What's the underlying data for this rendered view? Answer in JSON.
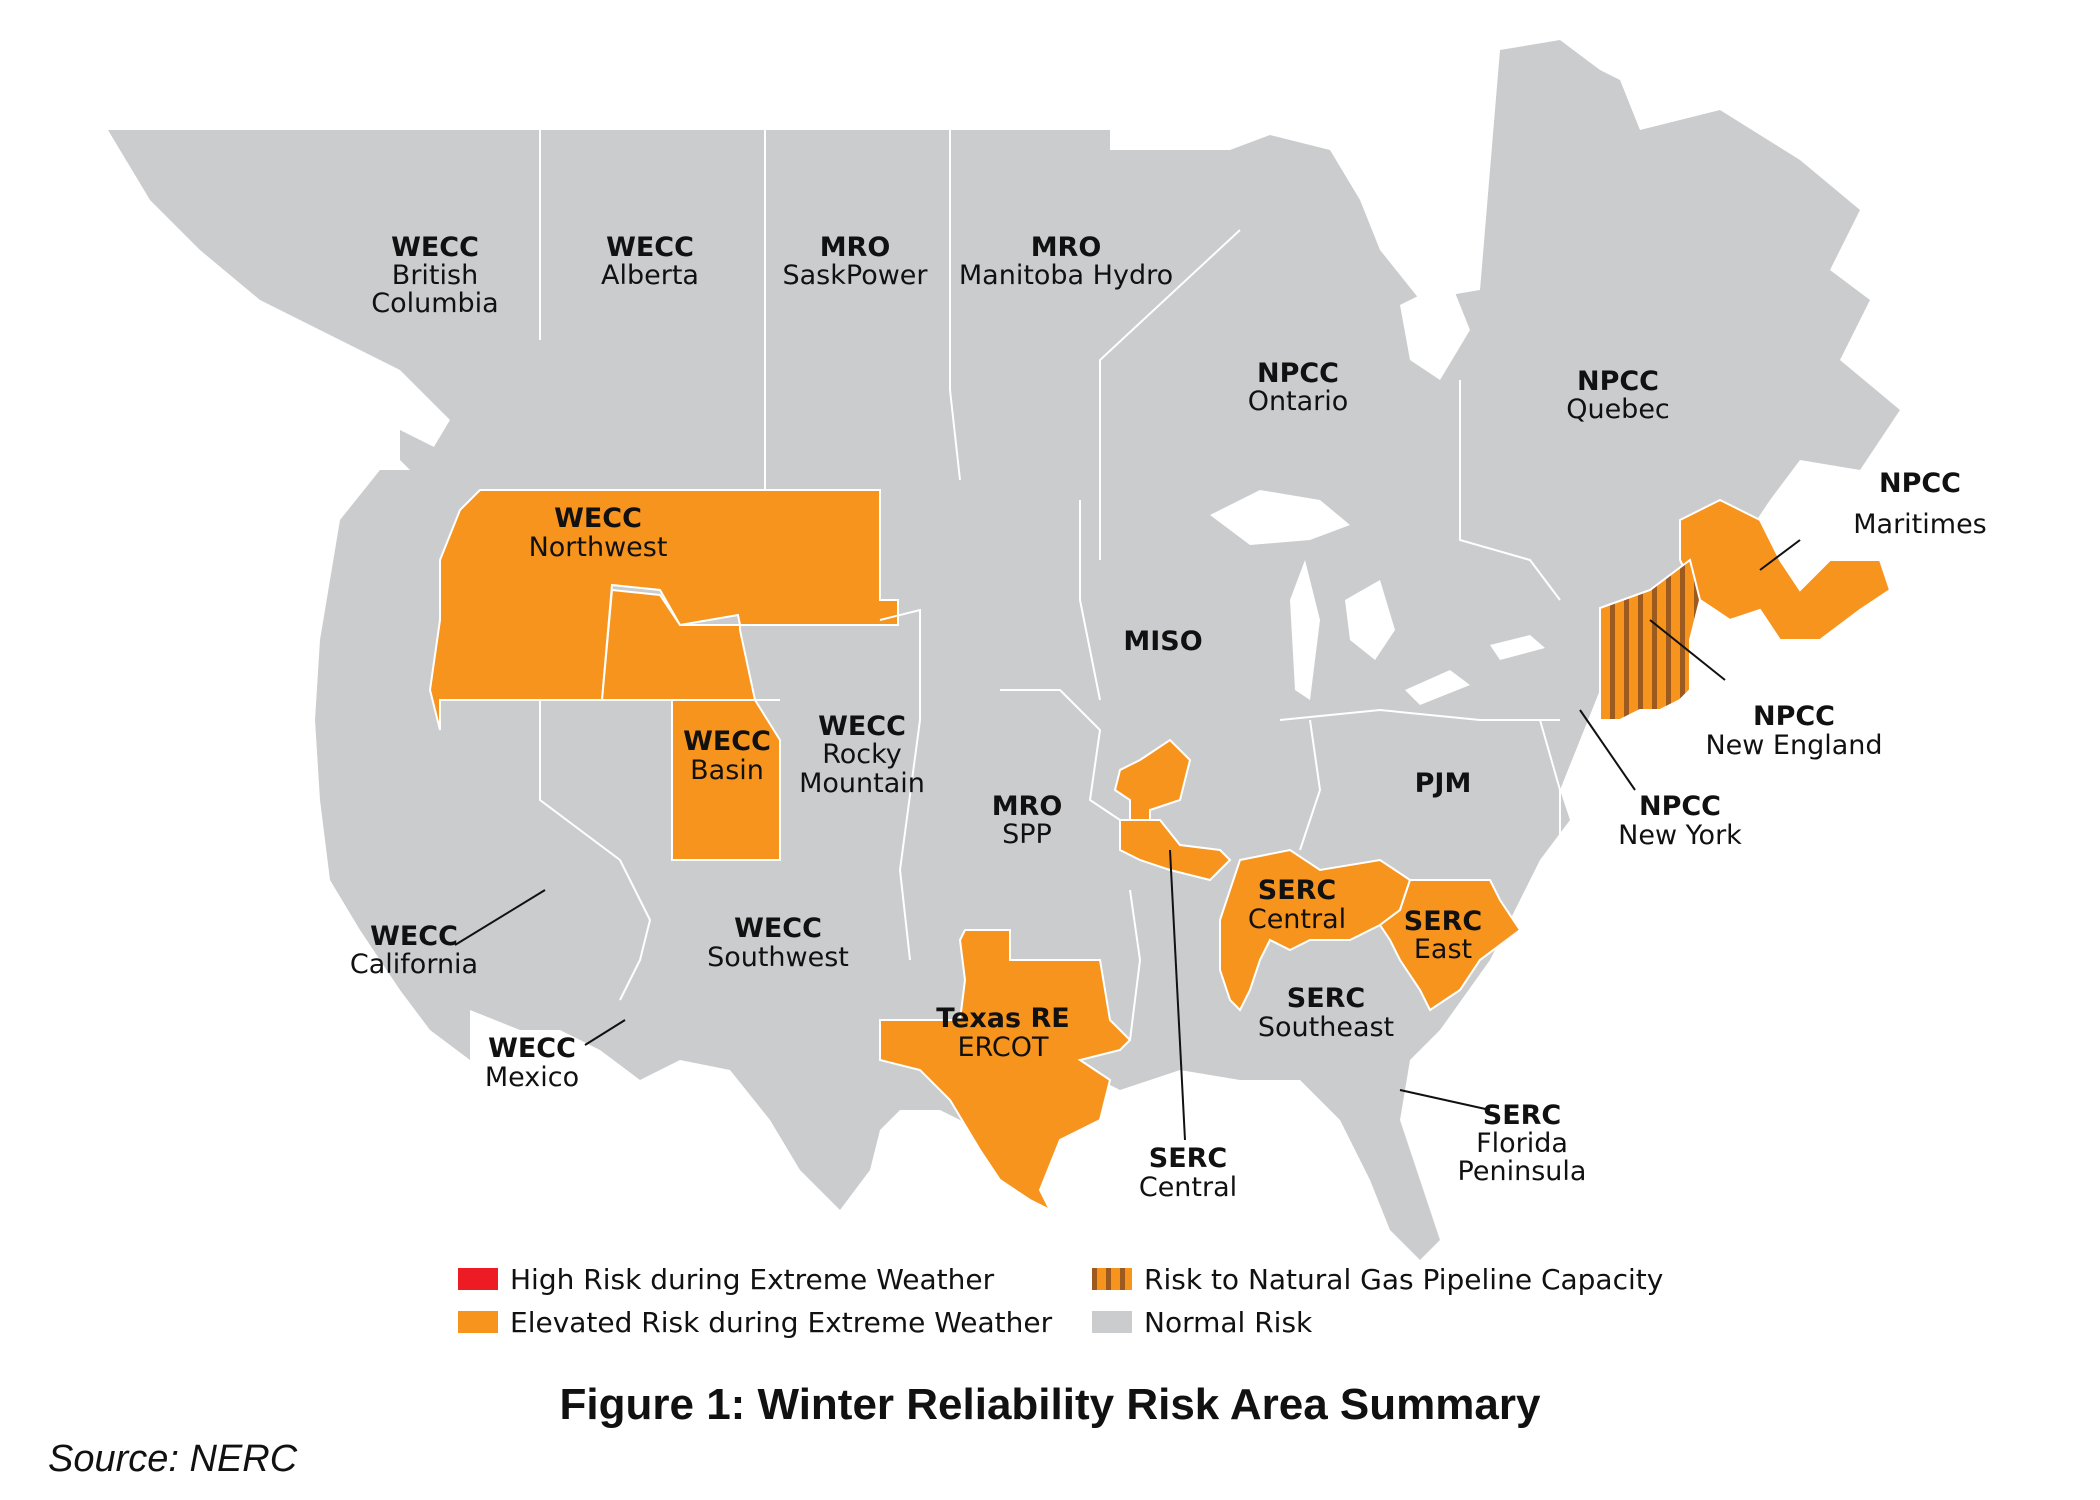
{
  "colors": {
    "normal": "#cbcccd",
    "elevated": "#f7941e",
    "high": "#ed1c24",
    "pipeline_stripe": "#9c5a1e",
    "border": "#ffffff"
  },
  "regions": {
    "wecc_bc": {
      "code": "WECC",
      "name": "British",
      "name2": "Columbia",
      "risk": "normal"
    },
    "wecc_ab": {
      "code": "WECC",
      "name": "Alberta",
      "risk": "normal"
    },
    "mro_sask": {
      "code": "MRO",
      "name": "SaskPower",
      "risk": "normal"
    },
    "mro_mh": {
      "code": "MRO",
      "name": "Manitoba Hydro",
      "risk": "normal"
    },
    "npcc_on": {
      "code": "NPCC",
      "name": "Ontario",
      "risk": "normal"
    },
    "npcc_qc": {
      "code": "NPCC",
      "name": "Quebec",
      "risk": "normal"
    },
    "npcc_mar": {
      "code": "NPCC",
      "name": "Maritimes",
      "risk": "elevated"
    },
    "wecc_nw": {
      "code": "WECC",
      "name": "Northwest",
      "risk": "elevated"
    },
    "wecc_basin": {
      "code": "WECC",
      "name": "Basin",
      "risk": "elevated"
    },
    "wecc_rm": {
      "code": "WECC",
      "name": "Rocky",
      "name2": "Mountain",
      "risk": "normal"
    },
    "miso": {
      "code": "MISO",
      "risk": "normal"
    },
    "npcc_ne": {
      "code": "NPCC",
      "name": "New England",
      "risk": "pipeline"
    },
    "npcc_ny": {
      "code": "NPCC",
      "name": "New York",
      "risk": "normal"
    },
    "pjm": {
      "code": "PJM",
      "risk": "normal"
    },
    "mro_spp": {
      "code": "MRO",
      "name": "SPP",
      "risk": "normal"
    },
    "serc_c": {
      "code": "SERC",
      "name": "Central",
      "risk": "elevated"
    },
    "serc_e": {
      "code": "SERC",
      "name": "East",
      "risk": "elevated"
    },
    "wecc_ca": {
      "code": "WECC",
      "name": "California",
      "risk": "normal"
    },
    "wecc_sw": {
      "code": "WECC",
      "name": "Southwest",
      "risk": "normal"
    },
    "texas": {
      "code": "Texas RE",
      "name": "ERCOT",
      "risk": "elevated"
    },
    "serc_se": {
      "code": "SERC",
      "name": "Southeast",
      "risk": "normal"
    },
    "wecc_mx": {
      "code": "WECC",
      "name": "Mexico",
      "risk": "normal"
    },
    "serc_c2": {
      "code": "SERC",
      "name": "Central",
      "risk": "elevated"
    },
    "serc_fl": {
      "code": "SERC",
      "name": "Florida",
      "name2": "Peninsula",
      "risk": "normal"
    }
  },
  "legend": {
    "high": "High Risk during Extreme Weather",
    "elevated": "Elevated Risk during Extreme Weather",
    "pipeline": "Risk to Natural Gas Pipeline Capacity",
    "normal": "Normal Risk"
  },
  "caption": "Figure 1: Winter Reliability Risk Area Summary",
  "source": "Source: NERC"
}
